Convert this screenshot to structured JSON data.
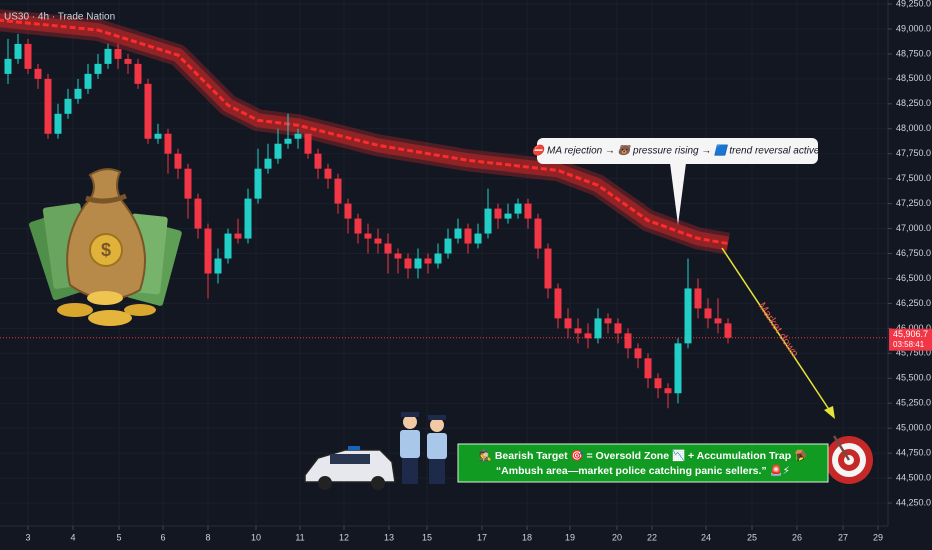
{
  "chart_data": {
    "type": "candlestick",
    "title": "US30 · 4h · Trade Nation",
    "up_color": "#22cfc6",
    "down_color": "#f23645",
    "xlim": [
      -0.8,
      88
    ],
    "ylim": [
      44020,
      49290
    ],
    "xticks": [
      {
        "value": 2,
        "label": "3"
      },
      {
        "value": 6.5,
        "label": "4"
      },
      {
        "value": 11.1,
        "label": "5"
      },
      {
        "value": 15.5,
        "label": "6"
      },
      {
        "value": 20,
        "label": "8"
      },
      {
        "value": 24.8,
        "label": "10"
      },
      {
        "value": 29.2,
        "label": "11"
      },
      {
        "value": 33.6,
        "label": "12"
      },
      {
        "value": 38.1,
        "label": "13"
      },
      {
        "value": 41.9,
        "label": "15"
      },
      {
        "value": 47.4,
        "label": "17"
      },
      {
        "value": 51.9,
        "label": "18"
      },
      {
        "value": 56.2,
        "label": "19"
      },
      {
        "value": 60.9,
        "label": "20"
      },
      {
        "value": 64.4,
        "label": "22"
      },
      {
        "value": 69.8,
        "label": "24"
      },
      {
        "value": 74.4,
        "label": "25"
      },
      {
        "value": 78.9,
        "label": "26"
      },
      {
        "value": 83.5,
        "label": "27"
      },
      {
        "value": 87,
        "label": "29"
      }
    ],
    "yticks": [
      {
        "value": 44250,
        "label": "44,250.0"
      },
      {
        "value": 44500,
        "label": "44,500.0"
      },
      {
        "value": 44750,
        "label": "44,750.0"
      },
      {
        "value": 45000,
        "label": "45,000.0"
      },
      {
        "value": 45250,
        "label": "45,250.0"
      },
      {
        "value": 45500,
        "label": "45,500.0"
      },
      {
        "value": 45750,
        "label": "45,750.0"
      },
      {
        "value": 46000,
        "label": "46,000.0"
      },
      {
        "value": 46250,
        "label": "46,250.0"
      },
      {
        "value": 46500,
        "label": "46,500.0"
      },
      {
        "value": 46750,
        "label": "46,750.0"
      },
      {
        "value": 47000,
        "label": "47,000.0"
      },
      {
        "value": 47250,
        "label": "47,250.0"
      },
      {
        "value": 47500,
        "label": "47,500.0"
      },
      {
        "value": 47750,
        "label": "47,750.0"
      },
      {
        "value": 48000,
        "label": "48,000.0"
      },
      {
        "value": 48250,
        "label": "48,250.0"
      },
      {
        "value": 48500,
        "label": "48,500.0"
      },
      {
        "value": 48750,
        "label": "48,750.0"
      },
      {
        "value": 49000,
        "label": "49,000.0"
      },
      {
        "value": 49250,
        "label": "49,250.0"
      }
    ],
    "candles": {
      "open": [
        48550,
        48700,
        48850,
        48600,
        48500,
        47950,
        48150,
        48300,
        48400,
        48550,
        48650,
        48800,
        48700,
        48650,
        48450,
        47900,
        47950,
        47750,
        47600,
        47300,
        47000,
        46550,
        46700,
        46950,
        46900,
        47300,
        47600,
        47700,
        47850,
        47900,
        47950,
        47750,
        47600,
        47500,
        47250,
        47100,
        46950,
        46900,
        46850,
        46750,
        46700,
        46600,
        46700,
        46650,
        46750,
        46900,
        47000,
        46850,
        46950,
        47200,
        47100,
        47150,
        47250,
        47100,
        46800,
        46400,
        46100,
        46000,
        45950,
        45900,
        46100,
        46050,
        45950,
        45800,
        45700,
        45500,
        45400,
        45350,
        45850,
        46400,
        46200,
        46100,
        46050
      ],
      "high": [
        48900,
        48950,
        48900,
        48650,
        48550,
        48250,
        48400,
        48500,
        48650,
        48750,
        48850,
        48850,
        48750,
        48700,
        48500,
        48050,
        48000,
        47800,
        47650,
        47350,
        47050,
        46800,
        47000,
        47100,
        47400,
        47800,
        47850,
        48000,
        48150,
        48000,
        47950,
        47800,
        47650,
        47550,
        47300,
        47150,
        47050,
        47000,
        46950,
        46800,
        46750,
        46800,
        46750,
        46850,
        47000,
        47100,
        47050,
        47050,
        47400,
        47250,
        47250,
        47300,
        47300,
        47150,
        46850,
        46450,
        46200,
        46100,
        46050,
        46200,
        46150,
        46100,
        46000,
        45850,
        45750,
        45550,
        45450,
        45900,
        46700,
        46500,
        46300,
        46300,
        46100
      ],
      "low": [
        48450,
        48650,
        48550,
        48400,
        47900,
        47900,
        48100,
        48250,
        48350,
        48500,
        48600,
        48600,
        48550,
        48400,
        47850,
        47850,
        47550,
        47500,
        47100,
        46900,
        46300,
        46450,
        46650,
        46850,
        46850,
        47250,
        47550,
        47650,
        47800,
        47800,
        47700,
        47500,
        47400,
        47150,
        46950,
        46850,
        46750,
        46750,
        46550,
        46550,
        46500,
        46500,
        46550,
        46600,
        46700,
        46850,
        46750,
        46800,
        46900,
        47000,
        47050,
        47100,
        47000,
        46700,
        46300,
        46000,
        45900,
        45850,
        45800,
        45850,
        45950,
        45850,
        45700,
        45600,
        45400,
        45300,
        45200,
        45250,
        45800,
        46100,
        46000,
        45950,
        45850
      ],
      "close": [
        48700,
        48850,
        48600,
        48500,
        47950,
        48150,
        48300,
        48400,
        48550,
        48650,
        48800,
        48700,
        48650,
        48450,
        47900,
        47950,
        47750,
        47600,
        47300,
        47000,
        46550,
        46700,
        46950,
        46900,
        47300,
        47600,
        47700,
        47850,
        47900,
        47950,
        47750,
        47600,
        47500,
        47250,
        47100,
        46950,
        46900,
        46850,
        46750,
        46700,
        46600,
        46700,
        46650,
        46750,
        46900,
        47000,
        46850,
        46950,
        47200,
        47100,
        47150,
        47250,
        47100,
        46800,
        46400,
        46100,
        46000,
        45950,
        45900,
        46100,
        46050,
        45950,
        45800,
        45700,
        45500,
        45400,
        45350,
        45850,
        46400,
        46200,
        46100,
        46050,
        45906.7
      ]
    },
    "moving_average": {
      "color": "#c62828",
      "x": [
        -1,
        9,
        17,
        22,
        25,
        29,
        37,
        46,
        55,
        59,
        64,
        69,
        72
      ],
      "values": [
        49089,
        48989,
        48738,
        48236,
        48085,
        48035,
        47834,
        47684,
        47583,
        47433,
        47081,
        46901,
        46850
      ]
    },
    "last_price": {
      "value": 45906.7,
      "label": "45,906.7"
    },
    "countdown": "03:58:41",
    "callout": "⛔ MA rejection → 🐻 pressure rising → 🟦 trend reversal active!",
    "arrow_label": "Market down",
    "target_box": {
      "line1": "🕵️ Bearish Target 🎯 = Oversold Zone 📉 + Accumulation Trap 🪤",
      "line2": "“Ambush area—market police catching panic sellers.” 🚨⚡"
    }
  }
}
